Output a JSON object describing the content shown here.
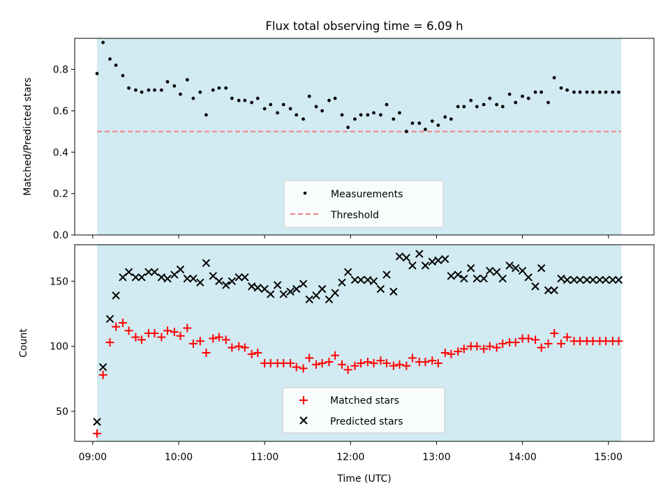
{
  "chart_data": [
    {
      "type": "scatter",
      "title": "Flux total observing time = 6.09 h",
      "xlabel": "",
      "ylabel": "Matched/Predicted stars",
      "xlim": [
        8.79,
        15.53
      ],
      "ylim": [
        0.0,
        0.95
      ],
      "yticks": [
        0.0,
        0.2,
        0.4,
        0.6,
        0.8
      ],
      "ytick_labels": [
        "0.0",
        "0.2",
        "0.4",
        "0.6",
        "0.8"
      ],
      "observing_window": [
        9.05,
        15.15
      ],
      "threshold": 0.5,
      "legend_loc": "lower center",
      "legend": {
        "measurements": "Measurements",
        "threshold": "Threshold"
      },
      "colors": {
        "band": "#add8e6",
        "measurements": "#000000",
        "threshold": "#f08080"
      },
      "x": [
        9.05,
        9.12,
        9.2,
        9.27,
        9.35,
        9.42,
        9.5,
        9.57,
        9.65,
        9.72,
        9.8,
        9.87,
        9.95,
        10.02,
        10.1,
        10.17,
        10.25,
        10.32,
        10.4,
        10.47,
        10.55,
        10.62,
        10.7,
        10.77,
        10.85,
        10.92,
        11.0,
        11.07,
        11.15,
        11.22,
        11.3,
        11.37,
        11.45,
        11.52,
        11.6,
        11.67,
        11.75,
        11.82,
        11.9,
        11.97,
        12.05,
        12.12,
        12.2,
        12.27,
        12.35,
        12.42,
        12.5,
        12.57,
        12.65,
        12.72,
        12.8,
        12.87,
        12.95,
        13.02,
        13.1,
        13.17,
        13.25,
        13.32,
        13.4,
        13.47,
        13.55,
        13.62,
        13.7,
        13.77,
        13.85,
        13.92,
        14.0,
        14.07,
        14.15,
        14.22,
        14.3,
        14.37,
        14.45,
        14.52,
        14.6,
        14.67,
        14.75,
        14.82,
        14.9,
        14.97,
        15.05,
        15.12
      ],
      "values": [
        0.78,
        0.93,
        0.85,
        0.82,
        0.77,
        0.71,
        0.7,
        0.69,
        0.7,
        0.7,
        0.7,
        0.74,
        0.72,
        0.68,
        0.75,
        0.66,
        0.69,
        0.58,
        0.7,
        0.71,
        0.71,
        0.66,
        0.65,
        0.65,
        0.64,
        0.66,
        0.61,
        0.63,
        0.59,
        0.63,
        0.61,
        0.58,
        0.56,
        0.67,
        0.62,
        0.6,
        0.65,
        0.66,
        0.58,
        0.52,
        0.56,
        0.58,
        0.58,
        0.59,
        0.58,
        0.63,
        0.56,
        0.59,
        0.5,
        0.54,
        0.54,
        0.51,
        0.55,
        0.53,
        0.57,
        0.56,
        0.62,
        0.62,
        0.65,
        0.62,
        0.63,
        0.66,
        0.63,
        0.62,
        0.68,
        0.64,
        0.67,
        0.66,
        0.69,
        0.69,
        0.64,
        0.76,
        0.71,
        0.7,
        0.69,
        0.69,
        0.69,
        0.69,
        0.69,
        0.69,
        0.69,
        0.69
      ]
    },
    {
      "type": "scatter",
      "title": "",
      "xlabel": "Time (UTC)",
      "ylabel": "Count",
      "xlim": [
        8.79,
        15.53
      ],
      "ylim": [
        27,
        178
      ],
      "yticks": [
        50,
        100,
        150
      ],
      "ytick_labels": [
        "50",
        "100",
        "150"
      ],
      "xticks": [
        9,
        10,
        11,
        12,
        13,
        14,
        15
      ],
      "xtick_labels": [
        "09:00",
        "10:00",
        "11:00",
        "12:00",
        "13:00",
        "14:00",
        "15:00"
      ],
      "observing_window": [
        9.05,
        15.15
      ],
      "legend_loc": "lower center",
      "colors": {
        "band": "#add8e6",
        "matched": "#ff0000",
        "predicted": "#000000"
      },
      "x": [
        9.05,
        9.12,
        9.2,
        9.27,
        9.35,
        9.42,
        9.5,
        9.57,
        9.65,
        9.72,
        9.8,
        9.87,
        9.95,
        10.02,
        10.1,
        10.17,
        10.25,
        10.32,
        10.4,
        10.47,
        10.55,
        10.62,
        10.7,
        10.77,
        10.85,
        10.92,
        11.0,
        11.07,
        11.15,
        11.22,
        11.3,
        11.37,
        11.45,
        11.52,
        11.6,
        11.67,
        11.75,
        11.82,
        11.9,
        11.97,
        12.05,
        12.12,
        12.2,
        12.27,
        12.35,
        12.42,
        12.5,
        12.57,
        12.65,
        12.72,
        12.8,
        12.87,
        12.95,
        13.02,
        13.1,
        13.17,
        13.25,
        13.32,
        13.4,
        13.47,
        13.55,
        13.62,
        13.7,
        13.77,
        13.85,
        13.92,
        14.0,
        14.07,
        14.15,
        14.22,
        14.3,
        14.37,
        14.45,
        14.52,
        14.6,
        14.67,
        14.75,
        14.82,
        14.9,
        14.97,
        15.05,
        15.12
      ],
      "series": [
        {
          "name": "Matched stars",
          "marker": "plus",
          "values": [
            33,
            78,
            103,
            115,
            118,
            112,
            107,
            105,
            110,
            110,
            107,
            112,
            111,
            108,
            114,
            102,
            104,
            95,
            106,
            107,
            105,
            99,
            100,
            99,
            94,
            95,
            87,
            87,
            87,
            87,
            87,
            84,
            83,
            91,
            86,
            87,
            88,
            93,
            86,
            82,
            85,
            87,
            88,
            87,
            89,
            87,
            85,
            86,
            85,
            91,
            88,
            88,
            89,
            87,
            95,
            94,
            96,
            98,
            100,
            100,
            98,
            100,
            99,
            102,
            103,
            103,
            106,
            106,
            105,
            99,
            102,
            110,
            102,
            107,
            104,
            104,
            104,
            104,
            104,
            104,
            104,
            104
          ]
        },
        {
          "name": "Predicted stars",
          "marker": "x",
          "values": [
            42,
            84,
            121,
            139,
            153,
            157,
            153,
            153,
            157,
            157,
            153,
            152,
            155,
            159,
            152,
            152,
            149,
            164,
            154,
            150,
            147,
            150,
            153,
            153,
            146,
            145,
            144,
            140,
            147,
            140,
            142,
            144,
            148,
            136,
            139,
            144,
            136,
            141,
            149,
            157,
            151,
            151,
            151,
            150,
            144,
            155,
            142,
            169,
            168,
            162,
            171,
            162,
            165,
            166,
            167,
            154,
            155,
            152,
            160,
            152,
            152,
            158,
            157,
            152,
            162,
            160,
            158,
            153,
            146,
            160,
            143,
            143,
            152,
            151,
            151,
            151,
            151,
            151,
            151,
            151,
            151,
            151
          ]
        }
      ]
    }
  ]
}
